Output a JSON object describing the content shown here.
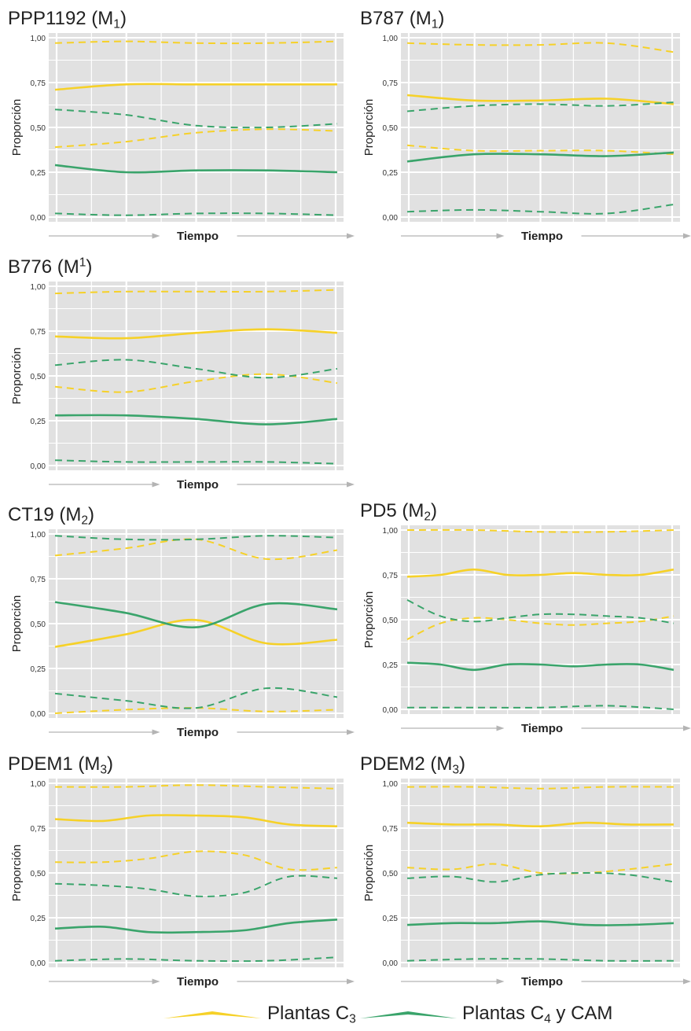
{
  "colors": {
    "c3": "#f6d128",
    "c4": "#3aa46b",
    "plot_bg": "#e1e1e1",
    "grid": "#ffffff",
    "axis_line": "#b4b4b4",
    "text": "#222222"
  },
  "axis": {
    "ylabel": "Proporción",
    "xlabel": "Tiempo",
    "yticks": [
      "1,00",
      "0,75",
      "0,50",
      "0,25",
      "0,00"
    ]
  },
  "legend": {
    "c3": {
      "prefix": "Plantas C",
      "sub": "3",
      "suffix": ""
    },
    "c4": {
      "prefix": "Plantas C",
      "sub": "4",
      "suffix": " y CAM"
    }
  },
  "chart_data": [
    {
      "type": "line",
      "title": {
        "main": "PPP1192 (M",
        "sub": "1",
        "sup": "",
        "end": ")"
      },
      "xlabel": "Tiempo",
      "ylabel": "Proporción",
      "ylim": [
        0,
        1
      ],
      "grid": true,
      "series": [
        {
          "name": "Plantas C3",
          "style": "solid",
          "color": "c3",
          "x": [
            0,
            0.25,
            0.5,
            0.75,
            1
          ],
          "values": [
            0.71,
            0.74,
            0.74,
            0.74,
            0.74
          ]
        },
        {
          "name": "Plantas C3",
          "style": "dashed",
          "color": "c3",
          "x": [
            0,
            0.25,
            0.5,
            0.75,
            1
          ],
          "values": [
            0.97,
            0.98,
            0.97,
            0.97,
            0.98
          ]
        },
        {
          "name": "Plantas C3",
          "style": "dashed",
          "color": "c3",
          "x": [
            0,
            0.25,
            0.5,
            0.75,
            1
          ],
          "values": [
            0.39,
            0.42,
            0.47,
            0.49,
            0.48
          ]
        },
        {
          "name": "Plantas C4 y CAM",
          "style": "solid",
          "color": "c4",
          "x": [
            0,
            0.25,
            0.5,
            0.75,
            1
          ],
          "values": [
            0.29,
            0.25,
            0.26,
            0.26,
            0.25
          ]
        },
        {
          "name": "Plantas C4 y CAM",
          "style": "dashed",
          "color": "c4",
          "x": [
            0,
            0.25,
            0.5,
            0.75,
            1
          ],
          "values": [
            0.6,
            0.57,
            0.51,
            0.5,
            0.52
          ]
        },
        {
          "name": "Plantas C4 y CAM",
          "style": "dashed",
          "color": "c4",
          "x": [
            0,
            0.25,
            0.5,
            0.75,
            1
          ],
          "values": [
            0.02,
            0.01,
            0.02,
            0.02,
            0.01
          ]
        }
      ]
    },
    {
      "type": "line",
      "title": {
        "main": "B787 (M",
        "sub": "1",
        "sup": "",
        "end": ")"
      },
      "xlabel": "Tiempo",
      "ylabel": "Proporción",
      "ylim": [
        0,
        1
      ],
      "grid": true,
      "series": [
        {
          "name": "Plantas C3",
          "style": "solid",
          "color": "c3",
          "x": [
            0,
            0.25,
            0.5,
            0.75,
            1
          ],
          "values": [
            0.68,
            0.65,
            0.65,
            0.66,
            0.63
          ]
        },
        {
          "name": "Plantas C3",
          "style": "dashed",
          "color": "c3",
          "x": [
            0,
            0.25,
            0.5,
            0.75,
            1
          ],
          "values": [
            0.97,
            0.96,
            0.96,
            0.97,
            0.92
          ]
        },
        {
          "name": "Plantas C3",
          "style": "dashed",
          "color": "c3",
          "x": [
            0,
            0.25,
            0.5,
            0.75,
            1
          ],
          "values": [
            0.4,
            0.37,
            0.37,
            0.37,
            0.35
          ]
        },
        {
          "name": "Plantas C4 y CAM",
          "style": "solid",
          "color": "c4",
          "x": [
            0,
            0.25,
            0.5,
            0.75,
            1
          ],
          "values": [
            0.31,
            0.35,
            0.35,
            0.34,
            0.36
          ]
        },
        {
          "name": "Plantas C4 y CAM",
          "style": "dashed",
          "color": "c4",
          "x": [
            0,
            0.25,
            0.5,
            0.75,
            1
          ],
          "values": [
            0.59,
            0.62,
            0.63,
            0.62,
            0.64
          ]
        },
        {
          "name": "Plantas C4 y CAM",
          "style": "dashed",
          "color": "c4",
          "x": [
            0,
            0.25,
            0.5,
            0.75,
            1
          ],
          "values": [
            0.03,
            0.04,
            0.03,
            0.02,
            0.07
          ]
        }
      ]
    },
    {
      "type": "line",
      "title": {
        "main": "B776 (M",
        "sub": "",
        "sup": "1",
        "end": ")"
      },
      "xlabel": "Tiempo",
      "ylabel": "Proporción",
      "ylim": [
        0,
        1
      ],
      "grid": true,
      "series": [
        {
          "name": "Plantas C3",
          "style": "solid",
          "color": "c3",
          "x": [
            0,
            0.25,
            0.5,
            0.75,
            1
          ],
          "values": [
            0.72,
            0.71,
            0.74,
            0.76,
            0.74
          ]
        },
        {
          "name": "Plantas C3",
          "style": "dashed",
          "color": "c3",
          "x": [
            0,
            0.25,
            0.5,
            0.75,
            1
          ],
          "values": [
            0.96,
            0.97,
            0.97,
            0.97,
            0.98
          ]
        },
        {
          "name": "Plantas C3",
          "style": "dashed",
          "color": "c3",
          "x": [
            0,
            0.25,
            0.5,
            0.75,
            1
          ],
          "values": [
            0.44,
            0.41,
            0.47,
            0.51,
            0.46
          ]
        },
        {
          "name": "Plantas C4 y CAM",
          "style": "solid",
          "color": "c4",
          "x": [
            0,
            0.25,
            0.5,
            0.75,
            1
          ],
          "values": [
            0.28,
            0.28,
            0.26,
            0.23,
            0.26
          ]
        },
        {
          "name": "Plantas C4 y CAM",
          "style": "dashed",
          "color": "c4",
          "x": [
            0,
            0.25,
            0.5,
            0.75,
            1
          ],
          "values": [
            0.56,
            0.59,
            0.54,
            0.49,
            0.54
          ]
        },
        {
          "name": "Plantas C4 y CAM",
          "style": "dashed",
          "color": "c4",
          "x": [
            0,
            0.25,
            0.5,
            0.75,
            1
          ],
          "values": [
            0.03,
            0.02,
            0.02,
            0.02,
            0.01
          ]
        }
      ]
    },
    {
      "type": "line",
      "title": {
        "main": "CT19 (M",
        "sub": "2",
        "sup": "",
        "end": ")"
      },
      "xlabel": "Tiempo",
      "ylabel": "Proporción",
      "ylim": [
        0,
        1
      ],
      "grid": true,
      "series": [
        {
          "name": "Plantas C3",
          "style": "solid",
          "color": "c3",
          "x": [
            0,
            0.25,
            0.5,
            0.75,
            1
          ],
          "values": [
            0.37,
            0.44,
            0.52,
            0.39,
            0.41
          ]
        },
        {
          "name": "Plantas C3",
          "style": "dashed",
          "color": "c3",
          "x": [
            0,
            0.25,
            0.5,
            0.75,
            1
          ],
          "values": [
            0.88,
            0.92,
            0.97,
            0.86,
            0.91
          ]
        },
        {
          "name": "Plantas C3",
          "style": "dashed",
          "color": "c3",
          "x": [
            0,
            0.25,
            0.5,
            0.75,
            1
          ],
          "values": [
            0.0,
            0.02,
            0.03,
            0.01,
            0.02
          ]
        },
        {
          "name": "Plantas C4 y CAM",
          "style": "solid",
          "color": "c4",
          "x": [
            0,
            0.25,
            0.5,
            0.75,
            1
          ],
          "values": [
            0.62,
            0.56,
            0.48,
            0.61,
            0.58
          ]
        },
        {
          "name": "Plantas C4 y CAM",
          "style": "dashed",
          "color": "c4",
          "x": [
            0,
            0.25,
            0.5,
            0.75,
            1
          ],
          "values": [
            0.99,
            0.97,
            0.97,
            0.99,
            0.98
          ]
        },
        {
          "name": "Plantas C4 y CAM",
          "style": "dashed",
          "color": "c4",
          "x": [
            0,
            0.25,
            0.5,
            0.75,
            1
          ],
          "values": [
            0.11,
            0.07,
            0.03,
            0.14,
            0.09
          ]
        }
      ]
    },
    {
      "type": "line",
      "title": {
        "main": "PD5 (M",
        "sub": "2",
        "sup": "",
        "end": ")"
      },
      "xlabel": "Tiempo",
      "ylabel": "Proporción",
      "ylim": [
        0,
        1
      ],
      "grid": true,
      "series": [
        {
          "name": "Plantas C3",
          "style": "solid",
          "color": "c3",
          "x": [
            0,
            0.125,
            0.25,
            0.375,
            0.5,
            0.625,
            0.75,
            0.875,
            1
          ],
          "values": [
            0.74,
            0.75,
            0.78,
            0.75,
            0.75,
            0.76,
            0.75,
            0.75,
            0.78
          ]
        },
        {
          "name": "Plantas C3",
          "style": "dashed",
          "color": "c3",
          "x": [
            0,
            0.25,
            0.5,
            0.75,
            1
          ],
          "values": [
            1.0,
            1.0,
            0.99,
            0.99,
            1.0
          ]
        },
        {
          "name": "Plantas C3",
          "style": "dashed",
          "color": "c3",
          "x": [
            0,
            0.125,
            0.25,
            0.375,
            0.5,
            0.625,
            0.75,
            0.875,
            1
          ],
          "values": [
            0.39,
            0.48,
            0.51,
            0.5,
            0.48,
            0.47,
            0.48,
            0.49,
            0.52
          ]
        },
        {
          "name": "Plantas C4 y CAM",
          "style": "solid",
          "color": "c4",
          "x": [
            0,
            0.125,
            0.25,
            0.375,
            0.5,
            0.625,
            0.75,
            0.875,
            1
          ],
          "values": [
            0.26,
            0.25,
            0.22,
            0.25,
            0.25,
            0.24,
            0.25,
            0.25,
            0.22
          ]
        },
        {
          "name": "Plantas C4 y CAM",
          "style": "dashed",
          "color": "c4",
          "x": [
            0,
            0.125,
            0.25,
            0.375,
            0.5,
            0.625,
            0.75,
            0.875,
            1
          ],
          "values": [
            0.61,
            0.52,
            0.49,
            0.51,
            0.53,
            0.53,
            0.52,
            0.51,
            0.48
          ]
        },
        {
          "name": "Plantas C4 y CAM",
          "style": "dashed",
          "color": "c4",
          "x": [
            0,
            0.25,
            0.5,
            0.75,
            1
          ],
          "values": [
            0.01,
            0.01,
            0.01,
            0.02,
            0.0
          ]
        }
      ]
    },
    {
      "type": "line",
      "title": {
        "main": "PDEM1 (M",
        "sub": "3",
        "sup": "",
        "end": ")"
      },
      "xlabel": "Tiempo",
      "ylabel": "Proporción",
      "ylim": [
        0,
        1
      ],
      "grid": true,
      "series": [
        {
          "name": "Plantas C3",
          "style": "solid",
          "color": "c3",
          "x": [
            0,
            0.17,
            0.33,
            0.5,
            0.67,
            0.83,
            1
          ],
          "values": [
            0.8,
            0.79,
            0.82,
            0.82,
            0.81,
            0.77,
            0.76
          ]
        },
        {
          "name": "Plantas C3",
          "style": "dashed",
          "color": "c3",
          "x": [
            0,
            0.25,
            0.5,
            0.75,
            1
          ],
          "values": [
            0.98,
            0.98,
            0.99,
            0.98,
            0.97
          ]
        },
        {
          "name": "Plantas C3",
          "style": "dashed",
          "color": "c3",
          "x": [
            0,
            0.17,
            0.33,
            0.5,
            0.67,
            0.83,
            1
          ],
          "values": [
            0.56,
            0.56,
            0.58,
            0.62,
            0.6,
            0.52,
            0.53
          ]
        },
        {
          "name": "Plantas C4 y CAM",
          "style": "solid",
          "color": "c4",
          "x": [
            0,
            0.17,
            0.33,
            0.5,
            0.67,
            0.83,
            1
          ],
          "values": [
            0.19,
            0.2,
            0.17,
            0.17,
            0.18,
            0.22,
            0.24
          ]
        },
        {
          "name": "Plantas C4 y CAM",
          "style": "dashed",
          "color": "c4",
          "x": [
            0,
            0.17,
            0.33,
            0.5,
            0.67,
            0.83,
            1
          ],
          "values": [
            0.44,
            0.43,
            0.41,
            0.37,
            0.39,
            0.48,
            0.47
          ]
        },
        {
          "name": "Plantas C4 y CAM",
          "style": "dashed",
          "color": "c4",
          "x": [
            0,
            0.25,
            0.5,
            0.75,
            1
          ],
          "values": [
            0.01,
            0.02,
            0.01,
            0.01,
            0.03
          ]
        }
      ]
    },
    {
      "type": "line",
      "title": {
        "main": "PDEM2 (M",
        "sub": "3",
        "sup": "",
        "end": ")"
      },
      "xlabel": "Tiempo",
      "ylabel": "Proporción",
      "ylim": [
        0,
        1
      ],
      "grid": true,
      "series": [
        {
          "name": "Plantas C3",
          "style": "solid",
          "color": "c3",
          "x": [
            0,
            0.17,
            0.33,
            0.5,
            0.67,
            0.83,
            1
          ],
          "values": [
            0.78,
            0.77,
            0.77,
            0.76,
            0.78,
            0.77,
            0.77
          ]
        },
        {
          "name": "Plantas C3",
          "style": "dashed",
          "color": "c3",
          "x": [
            0,
            0.25,
            0.5,
            0.75,
            1
          ],
          "values": [
            0.98,
            0.98,
            0.97,
            0.98,
            0.98
          ]
        },
        {
          "name": "Plantas C3",
          "style": "dashed",
          "color": "c3",
          "x": [
            0,
            0.17,
            0.33,
            0.5,
            0.67,
            0.83,
            1
          ],
          "values": [
            0.53,
            0.52,
            0.55,
            0.5,
            0.5,
            0.52,
            0.55
          ]
        },
        {
          "name": "Plantas C4 y CAM",
          "style": "solid",
          "color": "c4",
          "x": [
            0,
            0.17,
            0.33,
            0.5,
            0.67,
            0.83,
            1
          ],
          "values": [
            0.21,
            0.22,
            0.22,
            0.23,
            0.21,
            0.21,
            0.22
          ]
        },
        {
          "name": "Plantas C4 y CAM",
          "style": "dashed",
          "color": "c4",
          "x": [
            0,
            0.17,
            0.33,
            0.5,
            0.67,
            0.83,
            1
          ],
          "values": [
            0.47,
            0.48,
            0.45,
            0.49,
            0.5,
            0.49,
            0.45
          ]
        },
        {
          "name": "Plantas C4 y CAM",
          "style": "dashed",
          "color": "c4",
          "x": [
            0,
            0.25,
            0.5,
            0.75,
            1
          ],
          "values": [
            0.01,
            0.02,
            0.02,
            0.01,
            0.01
          ]
        }
      ]
    }
  ]
}
